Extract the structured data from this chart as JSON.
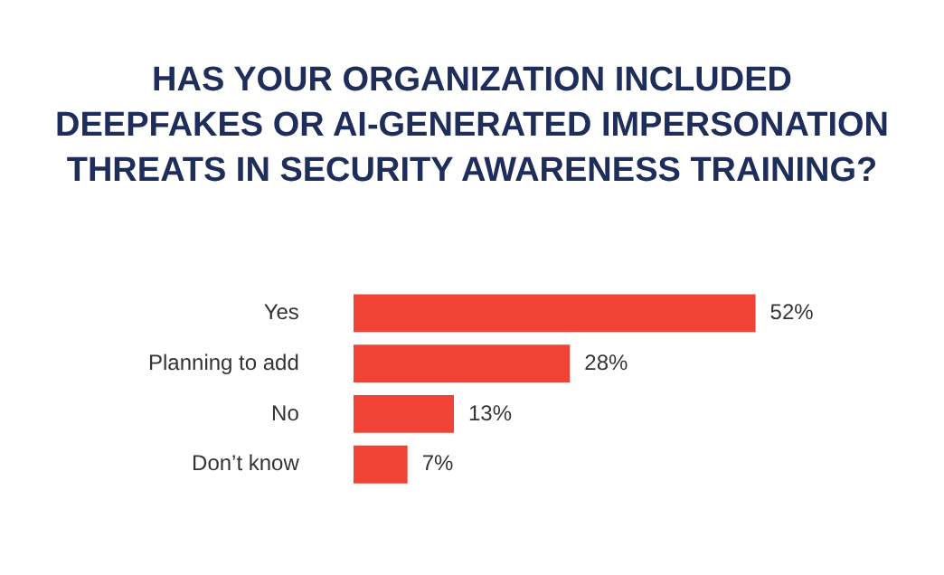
{
  "chart_data": {
    "type": "bar",
    "orientation": "horizontal",
    "title": "HAS YOUR ORGANIZATION INCLUDED DEEPFAKES OR AI-GENERATED IMPERSONATION THREATS IN SECURITY AWARENESS TRAINING?",
    "categories": [
      "Yes",
      "Planning to add",
      "No",
      "Don’t know"
    ],
    "values": [
      52,
      28,
      13,
      7
    ],
    "value_labels": [
      "52%",
      "28%",
      "13%",
      "7%"
    ],
    "color": "#f04235",
    "legend": false
  }
}
